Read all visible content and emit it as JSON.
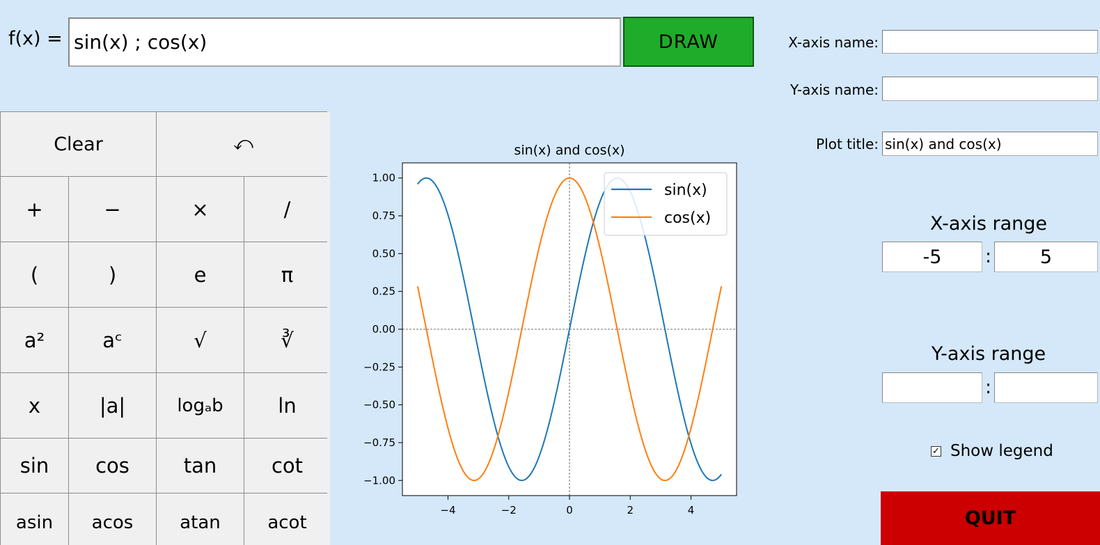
{
  "function_bar": {
    "label": "f(x) =",
    "value": "sin(x) ; cos(x)",
    "draw_label": "DRAW"
  },
  "keypad": {
    "keys": [
      {
        "label": "Clear",
        "name": "clear-button",
        "span": 2
      },
      {
        "label": "⤺",
        "name": "undo-button",
        "span": 2
      },
      {
        "label": "+",
        "name": "plus-key"
      },
      {
        "label": "−",
        "name": "minus-key"
      },
      {
        "label": "×",
        "name": "multiply-key"
      },
      {
        "label": "/",
        "name": "divide-key"
      },
      {
        "label": "(",
        "name": "open-paren-key"
      },
      {
        "label": ")",
        "name": "close-paren-key"
      },
      {
        "label": "e",
        "name": "e-key"
      },
      {
        "label": "π",
        "name": "pi-key"
      },
      {
        "label": "a²",
        "name": "square-key"
      },
      {
        "label": "aᶜ",
        "name": "power-key"
      },
      {
        "label": "√",
        "name": "sqrt-key"
      },
      {
        "label": "∛",
        "name": "cbrt-key"
      },
      {
        "label": "x",
        "name": "x-key"
      },
      {
        "label": "|a|",
        "name": "abs-key"
      },
      {
        "label": "logₐb",
        "name": "log-key"
      },
      {
        "label": "ln",
        "name": "ln-key"
      },
      {
        "label": "sin",
        "name": "sin-key"
      },
      {
        "label": "cos",
        "name": "cos-key"
      },
      {
        "label": "tan",
        "name": "tan-key"
      },
      {
        "label": "cot",
        "name": "cot-key"
      },
      {
        "label": "asin",
        "name": "asin-key"
      },
      {
        "label": "acos",
        "name": "acos-key"
      },
      {
        "label": "atan",
        "name": "atan-key"
      },
      {
        "label": "acot",
        "name": "acot-key"
      }
    ]
  },
  "settings": {
    "x_axis_name_label": "X-axis name:",
    "x_axis_name_value": "",
    "y_axis_name_label": "Y-axis name:",
    "y_axis_name_value": "",
    "plot_title_label": "Plot title:",
    "plot_title_value": "sin(x) and cos(x)",
    "x_range_label": "X-axis range",
    "x_range_min": "-5",
    "x_range_max": "5",
    "y_range_label": "Y-axis range",
    "y_range_min": "",
    "y_range_max": "",
    "range_separator": ":",
    "show_legend_label": "Show legend",
    "show_legend_checked": true,
    "check_mark": "✓",
    "quit_label": "QUIT"
  },
  "chart_data": {
    "type": "line",
    "title": "sin(x) and cos(x)",
    "xlabel": "",
    "ylabel": "",
    "xlim": [
      -5.5,
      5.5
    ],
    "ylim": [
      -1.1,
      1.1
    ],
    "x_ticks": [
      -4,
      -2,
      0,
      2,
      4
    ],
    "x_tick_labels": [
      "−4",
      "−2",
      "0",
      "2",
      "4"
    ],
    "y_ticks": [
      1.0,
      0.75,
      0.5,
      0.25,
      0.0,
      -0.25,
      -0.5,
      -0.75,
      -1.0
    ],
    "y_tick_labels": [
      "1.00",
      "0.75",
      "0.50",
      "0.25",
      "0.00",
      "−0.25",
      "−0.50",
      "−0.75",
      "−1.00"
    ],
    "legend_position": "top-right",
    "grid": false,
    "reference_lines": "dashed lines at x = 0 and y = 0",
    "x": [
      -5,
      -4.5,
      -4,
      -3.5,
      -3,
      -2.5,
      -2,
      -1.5,
      -1,
      -0.5,
      0,
      0.5,
      1,
      1.5,
      2,
      2.5,
      3,
      3.5,
      4,
      4.5,
      5
    ],
    "series": [
      {
        "name": "sin(x)",
        "color": "#1f77b4",
        "values": [
          0.959,
          0.978,
          0.757,
          0.351,
          -0.141,
          -0.598,
          -0.909,
          -0.997,
          -0.841,
          -0.479,
          0.0,
          0.479,
          0.841,
          0.997,
          0.909,
          0.598,
          0.141,
          -0.351,
          -0.757,
          -0.978,
          -0.959
        ]
      },
      {
        "name": "cos(x)",
        "color": "#ff7f0e",
        "values": [
          0.284,
          -0.211,
          -0.654,
          -0.936,
          -0.99,
          -0.801,
          -0.416,
          0.071,
          0.54,
          0.878,
          1.0,
          0.878,
          0.54,
          0.071,
          -0.416,
          -0.801,
          -0.99,
          -0.936,
          -0.654,
          -0.211,
          0.284
        ]
      }
    ]
  }
}
